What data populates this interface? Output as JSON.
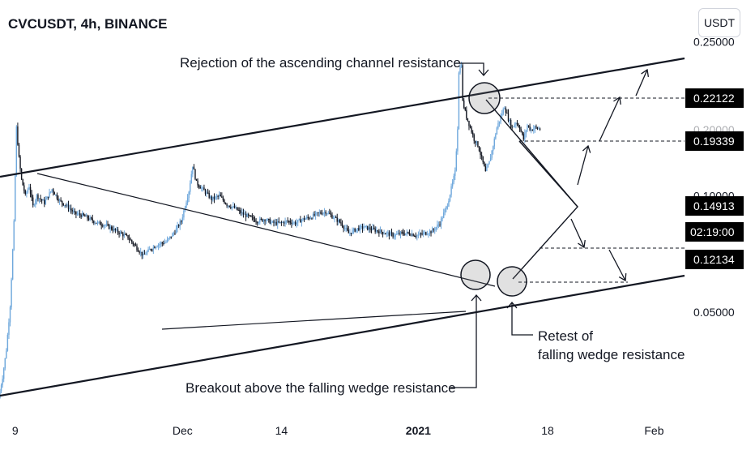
{
  "header": {
    "title": "CVCUSDT, 4h, BINANCE",
    "unit_button": "USDT"
  },
  "colors": {
    "up_candle": "#6fa8dc",
    "down_candle": "#131722",
    "line": "#131722",
    "label_bg": "#000000",
    "label_text": "#ffffff"
  },
  "chart_data": {
    "type": "candlestick",
    "title": "CVCUSDT, 4h, BINANCE",
    "scale": "log",
    "y_range": [
      0.0266,
      0.3205
    ],
    "y_ticks": [
      {
        "value": 0.25,
        "label": "0.25000"
      },
      {
        "value": 0.1,
        "label": "0.10000"
      },
      {
        "value": 0.05,
        "label": "0.05000"
      }
    ],
    "x_range_days": [
      "2020-11-07",
      "2021-02-05"
    ],
    "x_ticks": [
      {
        "date": "2020-11-09",
        "label": "9",
        "bold": false
      },
      {
        "date": "2020-12-01",
        "label": "Dec",
        "bold": false
      },
      {
        "date": "2020-12-14",
        "label": "14",
        "bold": false
      },
      {
        "date": "2021-01-01",
        "label": "2021",
        "bold": true
      },
      {
        "date": "2021-01-18",
        "label": "18",
        "bold": false
      },
      {
        "date": "2021-02-01",
        "label": "Feb",
        "bold": false
      }
    ],
    "price_labels": [
      {
        "value": 0.22122,
        "label": "0.22122"
      },
      {
        "value": 0.19339,
        "label": "0.19339"
      },
      {
        "value": 0.14913,
        "label": "0.14913",
        "sub": "02:19:00"
      },
      {
        "value": 0.12134,
        "label": "0.12134"
      }
    ],
    "faint_tick_label": "0.20000",
    "annotations": [
      {
        "text": "Rejection of the ascending channel resistance"
      },
      {
        "text": "Breakout above the falling wedge resistance"
      },
      {
        "text": "Retest of",
        "text2": "falling wedge resistance"
      }
    ],
    "price_path": [
      [
        "2020-11-07",
        0.03
      ],
      [
        "2020-11-07T12",
        0.034
      ],
      [
        "2020-11-08",
        0.04
      ],
      [
        "2020-11-08T12",
        0.052
      ],
      [
        "2020-11-09",
        0.085
      ],
      [
        "2020-11-09T08",
        0.15
      ],
      [
        "2020-11-09T16",
        0.125
      ],
      [
        "2020-11-10",
        0.11
      ],
      [
        "2020-11-10T12",
        0.1
      ],
      [
        "2020-11-11",
        0.106
      ],
      [
        "2020-11-11T12",
        0.094
      ],
      [
        "2020-11-12",
        0.1
      ],
      [
        "2020-11-13",
        0.096
      ],
      [
        "2020-11-14",
        0.104
      ],
      [
        "2020-11-15",
        0.097
      ],
      [
        "2020-11-16",
        0.094
      ],
      [
        "2020-11-17",
        0.09
      ],
      [
        "2020-11-18",
        0.089
      ],
      [
        "2020-11-19",
        0.087
      ],
      [
        "2020-11-20",
        0.085
      ],
      [
        "2020-11-21",
        0.084
      ],
      [
        "2020-11-22",
        0.082
      ],
      [
        "2020-11-23",
        0.08
      ],
      [
        "2020-11-24",
        0.078
      ],
      [
        "2020-11-25",
        0.074
      ],
      [
        "2020-11-26",
        0.07
      ],
      [
        "2020-11-27",
        0.073
      ],
      [
        "2020-11-28",
        0.075
      ],
      [
        "2020-11-29",
        0.076
      ],
      [
        "2020-11-30",
        0.08
      ],
      [
        "2020-12-01",
        0.086
      ],
      [
        "2020-12-02",
        0.103
      ],
      [
        "2020-12-02T12",
        0.12
      ],
      [
        "2020-12-03",
        0.108
      ],
      [
        "2020-12-04",
        0.103
      ],
      [
        "2020-12-05",
        0.098
      ],
      [
        "2020-12-06",
        0.1
      ],
      [
        "2020-12-07",
        0.095
      ],
      [
        "2020-12-08",
        0.093
      ],
      [
        "2020-12-09",
        0.09
      ],
      [
        "2020-12-10",
        0.088
      ],
      [
        "2020-12-11",
        0.086
      ],
      [
        "2020-12-12",
        0.087
      ],
      [
        "2020-12-13",
        0.085
      ],
      [
        "2020-12-14",
        0.085
      ],
      [
        "2020-12-15",
        0.086
      ],
      [
        "2020-12-16",
        0.085
      ],
      [
        "2020-12-17",
        0.087
      ],
      [
        "2020-12-18",
        0.088
      ],
      [
        "2020-12-19",
        0.09
      ],
      [
        "2020-12-20",
        0.091
      ],
      [
        "2020-12-21",
        0.088
      ],
      [
        "2020-12-22",
        0.085
      ],
      [
        "2020-12-23",
        0.08
      ],
      [
        "2020-12-24",
        0.082
      ],
      [
        "2020-12-25",
        0.083
      ],
      [
        "2020-12-26",
        0.082
      ],
      [
        "2020-12-27",
        0.081
      ],
      [
        "2020-12-28",
        0.08
      ],
      [
        "2020-12-29",
        0.079
      ],
      [
        "2020-12-30",
        0.08
      ],
      [
        "2020-12-31",
        0.08
      ],
      [
        "2021-01-01",
        0.079
      ],
      [
        "2021-01-02",
        0.08
      ],
      [
        "2021-01-03",
        0.081
      ],
      [
        "2021-01-04",
        0.085
      ],
      [
        "2021-01-05",
        0.095
      ],
      [
        "2021-01-06",
        0.115
      ],
      [
        "2021-01-06T08",
        0.15
      ],
      [
        "2021-01-06T12",
        0.21
      ],
      [
        "2021-01-06T20",
        0.22
      ],
      [
        "2021-01-07",
        0.175
      ],
      [
        "2021-01-07T12",
        0.16
      ],
      [
        "2021-01-08",
        0.15
      ],
      [
        "2021-01-08T12",
        0.14
      ],
      [
        "2021-01-09",
        0.135
      ],
      [
        "2021-01-09T12",
        0.125
      ],
      [
        "2021-01-10",
        0.115
      ],
      [
        "2021-01-10T12",
        0.122
      ],
      [
        "2021-01-11",
        0.135
      ],
      [
        "2021-01-11T12",
        0.15
      ],
      [
        "2021-01-12",
        0.16
      ],
      [
        "2021-01-12T12",
        0.17
      ],
      [
        "2021-01-13",
        0.158
      ],
      [
        "2021-01-13T12",
        0.15
      ],
      [
        "2021-01-14",
        0.155
      ],
      [
        "2021-01-14T12",
        0.15
      ],
      [
        "2021-01-15",
        0.14
      ],
      [
        "2021-01-15T12",
        0.152
      ],
      [
        "2021-01-16",
        0.148
      ],
      [
        "2021-01-16T12",
        0.15
      ],
      [
        "2021-01-17",
        0.149
      ]
    ]
  }
}
